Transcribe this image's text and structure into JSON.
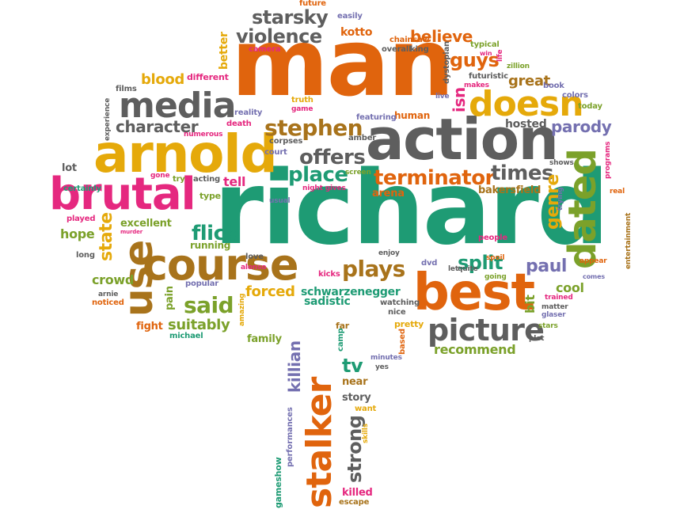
{
  "colors": {
    "orange": "#e0640d",
    "green": "#1e9b74",
    "gold": "#e5a90a",
    "pink": "#e5287f",
    "gray": "#5e5e5e",
    "olive": "#7ba12a",
    "purple": "#7470b0",
    "brown": "#a8731b"
  },
  "words": [
    {
      "text": "man",
      "color": "#e0640d"
    },
    {
      "text": "richard",
      "color": "#1e9b74"
    },
    {
      "text": "action",
      "color": "#5e5e5e"
    },
    {
      "text": "arnold",
      "color": "#e5a90a"
    },
    {
      "text": "brutal",
      "color": "#e5287f"
    },
    {
      "text": "course",
      "color": "#a8731b"
    },
    {
      "text": "best",
      "color": "#e0640d"
    },
    {
      "text": "stalker",
      "color": "#e0640d"
    },
    {
      "text": "dated",
      "color": "#7ba12a"
    },
    {
      "text": "media",
      "color": "#5e5e5e"
    },
    {
      "text": "doesn",
      "color": "#e5a90a"
    },
    {
      "text": "use",
      "color": "#a8731b"
    },
    {
      "text": "picture",
      "color": "#5e5e5e"
    },
    {
      "text": "stephen",
      "color": "#a8731b"
    },
    {
      "text": "violence",
      "color": "#5e5e5e"
    },
    {
      "text": "starsky",
      "color": "#5e5e5e"
    },
    {
      "text": "terminator",
      "color": "#e0640d"
    },
    {
      "text": "offers",
      "color": "#5e5e5e"
    },
    {
      "text": "place",
      "color": "#1e9b74"
    },
    {
      "text": "times",
      "color": "#5e5e5e"
    },
    {
      "text": "plays",
      "color": "#a8731b"
    },
    {
      "text": "said",
      "color": "#7ba12a"
    },
    {
      "text": "flick",
      "color": "#1e9b74"
    },
    {
      "text": "character",
      "color": "#5e5e5e"
    },
    {
      "text": "parody",
      "color": "#7470b0"
    },
    {
      "text": "split",
      "color": "#1e9b74"
    },
    {
      "text": "paul",
      "color": "#7470b0"
    },
    {
      "text": "strong",
      "color": "#5e5e5e"
    },
    {
      "text": "believe",
      "color": "#e0640d"
    },
    {
      "text": "guys",
      "color": "#e0640d"
    },
    {
      "text": "great",
      "color": "#a8731b"
    },
    {
      "text": "blood",
      "color": "#e5a90a"
    },
    {
      "text": "suitably",
      "color": "#7ba12a"
    },
    {
      "text": "forced",
      "color": "#e5a90a"
    },
    {
      "text": "schwarzenegger",
      "color": "#1e9b74"
    },
    {
      "text": "recommend",
      "color": "#7ba12a"
    },
    {
      "text": "tv",
      "color": "#1e9b74"
    },
    {
      "text": "killian",
      "color": "#7470b0"
    },
    {
      "text": "state",
      "color": "#e5a90a"
    },
    {
      "text": "genre",
      "color": "#e5a90a"
    },
    {
      "text": "hope",
      "color": "#7ba12a"
    },
    {
      "text": "crowd",
      "color": "#7ba12a"
    },
    {
      "text": "tell",
      "color": "#e5287f"
    },
    {
      "text": "excellent",
      "color": "#7ba12a"
    },
    {
      "text": "cool",
      "color": "#7ba12a"
    },
    {
      "text": "bit",
      "color": "#7ba12a"
    },
    {
      "text": "kotto",
      "color": "#e0640d"
    },
    {
      "text": "isn",
      "color": "#e5287f"
    },
    {
      "text": "hosted",
      "color": "#5e5e5e"
    },
    {
      "text": "bakersfield",
      "color": "#a8731b"
    },
    {
      "text": "arena",
      "color": "#e0640d"
    },
    {
      "text": "sadistic",
      "color": "#1e9b74"
    },
    {
      "text": "killed",
      "color": "#e5287f"
    },
    {
      "text": "story",
      "color": "#5e5e5e"
    },
    {
      "text": "near",
      "color": "#a8731b"
    },
    {
      "text": "lot",
      "color": "#5e5e5e"
    },
    {
      "text": "family",
      "color": "#7ba12a"
    },
    {
      "text": "fight",
      "color": "#e0640d"
    },
    {
      "text": "pain",
      "color": "#7ba12a"
    },
    {
      "text": "running",
      "color": "#7ba12a"
    },
    {
      "text": "human",
      "color": "#e0640d"
    },
    {
      "text": "better",
      "color": "#e5a90a"
    },
    {
      "text": "different",
      "color": "#e5287f"
    },
    {
      "text": "films",
      "color": "#5e5e5e"
    },
    {
      "text": "futuristic",
      "color": "#5e5e5e"
    },
    {
      "text": "book",
      "color": "#7470b0"
    },
    {
      "text": "colors",
      "color": "#7470b0"
    },
    {
      "text": "today",
      "color": "#7ba12a"
    },
    {
      "text": "future",
      "color": "#e0640d"
    },
    {
      "text": "easily",
      "color": "#7470b0"
    },
    {
      "text": "chainsaw",
      "color": "#e0640d"
    },
    {
      "text": "typical",
      "color": "#7ba12a"
    },
    {
      "text": "overall",
      "color": "#5e5e5e"
    },
    {
      "text": "king",
      "color": "#5e5e5e"
    },
    {
      "text": "camera",
      "color": "#e5287f"
    },
    {
      "text": "win",
      "color": "#e5287f"
    },
    {
      "text": "life",
      "color": "#e5287f"
    },
    {
      "text": "zillion",
      "color": "#7ba12a"
    },
    {
      "text": "dystopian",
      "color": "#5e5e5e"
    },
    {
      "text": "live",
      "color": "#7470b0"
    },
    {
      "text": "makes",
      "color": "#e5287f"
    },
    {
      "text": "featuring",
      "color": "#7470b0"
    },
    {
      "text": "truth",
      "color": "#e5a90a"
    },
    {
      "text": "game",
      "color": "#e5287f"
    },
    {
      "text": "reality",
      "color": "#7470b0"
    },
    {
      "text": "death",
      "color": "#e5287f"
    },
    {
      "text": "numerous",
      "color": "#e5287f"
    },
    {
      "text": "amber",
      "color": "#5e5e5e"
    },
    {
      "text": "corpses",
      "color": "#5e5e5e"
    },
    {
      "text": "court",
      "color": "#7470b0"
    },
    {
      "text": "screen",
      "color": "#7ba12a"
    },
    {
      "text": "night gives",
      "color": "#e5287f"
    },
    {
      "text": "acting",
      "color": "#5e5e5e"
    },
    {
      "text": "usual",
      "color": "#7470b0"
    },
    {
      "text": "gone",
      "color": "#e5287f"
    },
    {
      "text": "try",
      "color": "#7ba12a"
    },
    {
      "text": "certainly",
      "color": "#1e9b74"
    },
    {
      "text": "type",
      "color": "#7ba12a"
    },
    {
      "text": "played",
      "color": "#e5287f"
    },
    {
      "text": "murder",
      "color": "#e5287f"
    },
    {
      "text": "long",
      "color": "#5e5e5e"
    },
    {
      "text": "love",
      "color": "#5e5e5e"
    },
    {
      "text": "alonso",
      "color": "#e5287f"
    },
    {
      "text": "enjoy",
      "color": "#5e5e5e"
    },
    {
      "text": "dvd",
      "color": "#7470b0"
    },
    {
      "text": "let",
      "color": "#5e5e5e"
    },
    {
      "text": "quite",
      "color": "#5e5e5e"
    },
    {
      "text": "kicks",
      "color": "#e5287f"
    },
    {
      "text": "popular",
      "color": "#7470b0"
    },
    {
      "text": "arnie",
      "color": "#5e5e5e"
    },
    {
      "text": "noticed",
      "color": "#e0640d"
    },
    {
      "text": "michael",
      "color": "#1e9b74"
    },
    {
      "text": "amazing",
      "color": "#e5a90a"
    },
    {
      "text": "watching",
      "color": "#5e5e5e"
    },
    {
      "text": "nice",
      "color": "#5e5e5e"
    },
    {
      "text": "pretty",
      "color": "#e5a90a"
    },
    {
      "text": "far",
      "color": "#a8731b"
    },
    {
      "text": "camp",
      "color": "#1e9b74"
    },
    {
      "text": "based",
      "color": "#e0640d"
    },
    {
      "text": "minutes",
      "color": "#7470b0"
    },
    {
      "text": "yes",
      "color": "#5e5e5e"
    },
    {
      "text": "want",
      "color": "#e5a90a"
    },
    {
      "text": "skills",
      "color": "#e5a90a"
    },
    {
      "text": "escape",
      "color": "#a8731b"
    },
    {
      "text": "gameshow",
      "color": "#1e9b74"
    },
    {
      "text": "performances",
      "color": "#7470b0"
    },
    {
      "text": "spoil",
      "color": "#e0640d"
    },
    {
      "text": "people",
      "color": "#e5287f"
    },
    {
      "text": "going",
      "color": "#7ba12a"
    },
    {
      "text": "trained",
      "color": "#e5287f"
    },
    {
      "text": "matter",
      "color": "#5e5e5e"
    },
    {
      "text": "glaser",
      "color": "#7470b0"
    },
    {
      "text": "stars",
      "color": "#7ba12a"
    },
    {
      "text": "plot",
      "color": "#5e5e5e"
    },
    {
      "text": "comes",
      "color": "#7470b0"
    },
    {
      "text": "appear",
      "color": "#e0640d"
    },
    {
      "text": "shows",
      "color": "#5e5e5e"
    },
    {
      "text": "real",
      "color": "#e0640d"
    },
    {
      "text": "programs",
      "color": "#e5287f"
    },
    {
      "text": "trying",
      "color": "#7470b0"
    },
    {
      "text": "entertainment",
      "color": "#a8731b"
    },
    {
      "text": "experience",
      "color": "#5e5e5e"
    }
  ]
}
